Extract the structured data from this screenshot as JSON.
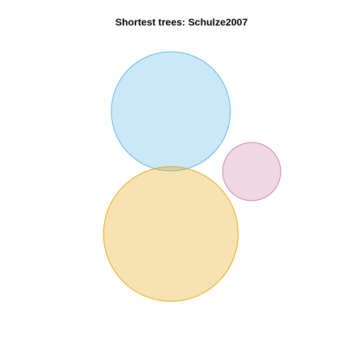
{
  "chart_data": {
    "type": "venn",
    "title": "Shortest trees: Schulze2007",
    "sets": [
      {
        "color": "#56B4E9"
      },
      {
        "color": "#E69F00"
      },
      {
        "color": "#CC79A7"
      }
    ],
    "legend": "none",
    "grid": false
  }
}
